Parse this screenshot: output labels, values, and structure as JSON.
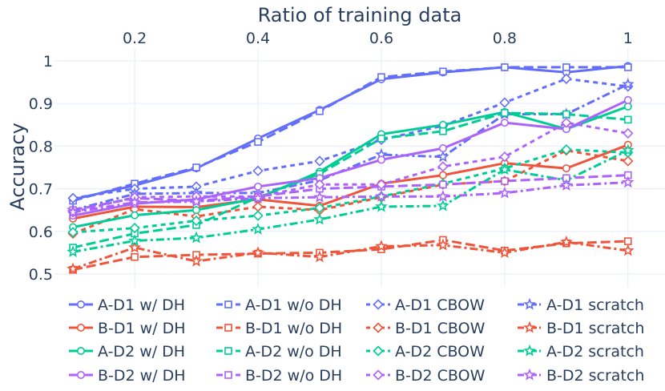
{
  "chart_data": {
    "type": "line",
    "title": "",
    "xlabel": "Ratio of training data",
    "ylabel": "Accuracy",
    "x": [
      0.1,
      0.2,
      0.3,
      0.4,
      0.5,
      0.6,
      0.7,
      0.8,
      0.9,
      1.0
    ],
    "xticks": [
      0.2,
      0.4,
      0.6,
      0.8,
      1
    ],
    "xtick_labels": [
      "0.2",
      "0.4",
      "0.6",
      "0.8",
      "1"
    ],
    "yticks": [
      0.5,
      0.6,
      0.7,
      0.8,
      0.9,
      1
    ],
    "ytick_labels": [
      "0.5",
      "0.6",
      "0.7",
      "0.8",
      "0.9",
      "1"
    ],
    "xlim": [
      0.07,
      1.06
    ],
    "ylim": [
      0.47,
      1.03
    ],
    "grid": true,
    "legend_position": "bottom",
    "colors": {
      "A-D1": "#636efa",
      "B-D1": "#ef553b",
      "A-D2": "#00cc96",
      "B-D2": "#ab63fa"
    },
    "series": [
      {
        "name": "A-D1 w/ DH",
        "color": "#636efa",
        "dash": "solid",
        "marker": "circle",
        "values": [
          0.675,
          0.708,
          0.748,
          0.818,
          0.885,
          0.957,
          0.973,
          0.985,
          0.973,
          0.988
        ]
      },
      {
        "name": "A-D1 w/o DH",
        "color": "#636efa",
        "dash": "dash",
        "marker": "square",
        "values": [
          0.672,
          0.712,
          0.75,
          0.81,
          0.882,
          0.962,
          0.975,
          0.985,
          0.985,
          0.985
        ]
      },
      {
        "name": "A-D1 CBOW",
        "color": "#636efa",
        "dash": "shortdash",
        "marker": "diamond",
        "values": [
          0.678,
          0.7,
          0.705,
          0.742,
          0.765,
          0.815,
          0.848,
          0.902,
          0.958,
          0.94
        ]
      },
      {
        "name": "A-D1 scratch",
        "color": "#636efa",
        "dash": "dashdot",
        "marker": "star",
        "values": [
          0.65,
          0.688,
          0.69,
          0.69,
          0.72,
          0.78,
          0.775,
          0.875,
          0.875,
          0.945
        ]
      },
      {
        "name": "B-D1 w/ DH",
        "color": "#ef553b",
        "dash": "solid",
        "marker": "circle",
        "values": [
          0.63,
          0.658,
          0.657,
          0.675,
          0.66,
          0.712,
          0.732,
          0.76,
          0.748,
          0.803
        ]
      },
      {
        "name": "B-D1 w/o DH",
        "color": "#ef553b",
        "dash": "dash",
        "marker": "square",
        "values": [
          0.51,
          0.54,
          0.545,
          0.548,
          0.55,
          0.558,
          0.58,
          0.555,
          0.572,
          0.577
        ]
      },
      {
        "name": "B-D1 CBOW",
        "color": "#ef553b",
        "dash": "shortdash",
        "marker": "diamond",
        "values": [
          0.595,
          0.652,
          0.635,
          0.658,
          0.65,
          0.68,
          0.71,
          0.718,
          0.79,
          0.765
        ]
      },
      {
        "name": "B-D1 scratch",
        "color": "#ef553b",
        "dash": "dashdot",
        "marker": "star",
        "values": [
          0.512,
          0.562,
          0.53,
          0.55,
          0.54,
          0.565,
          0.568,
          0.55,
          0.575,
          0.555
        ]
      },
      {
        "name": "A-D2 w/ DH",
        "color": "#00cc96",
        "dash": "solid",
        "marker": "circle",
        "values": [
          0.61,
          0.638,
          0.65,
          0.678,
          0.74,
          0.828,
          0.85,
          0.88,
          0.84,
          0.893
        ]
      },
      {
        "name": "A-D2 w/o DH",
        "color": "#00cc96",
        "dash": "dash",
        "marker": "square",
        "values": [
          0.562,
          0.595,
          0.615,
          0.68,
          0.735,
          0.818,
          0.835,
          0.878,
          0.875,
          0.862
        ]
      },
      {
        "name": "A-D2 CBOW",
        "color": "#00cc96",
        "dash": "shortdash",
        "marker": "diamond",
        "values": [
          0.598,
          0.608,
          0.625,
          0.637,
          0.655,
          0.682,
          0.712,
          0.748,
          0.792,
          0.785
        ]
      },
      {
        "name": "A-D2 scratch",
        "color": "#00cc96",
        "dash": "dashdot",
        "marker": "star",
        "values": [
          0.552,
          0.578,
          0.585,
          0.605,
          0.628,
          0.658,
          0.66,
          0.745,
          0.72,
          0.79
        ]
      },
      {
        "name": "B-D2 w/ DH",
        "color": "#ab63fa",
        "dash": "solid",
        "marker": "circle",
        "values": [
          0.637,
          0.665,
          0.675,
          0.705,
          0.725,
          0.768,
          0.795,
          0.855,
          0.84,
          0.908
        ]
      },
      {
        "name": "B-D2 w/o DH",
        "color": "#ab63fa",
        "dash": "dash",
        "marker": "square",
        "values": [
          0.65,
          0.678,
          0.672,
          0.682,
          0.7,
          0.705,
          0.71,
          0.718,
          0.725,
          0.732
        ]
      },
      {
        "name": "B-D2 CBOW",
        "color": "#ab63fa",
        "dash": "shortdash",
        "marker": "diamond",
        "values": [
          0.645,
          0.68,
          0.682,
          0.682,
          0.71,
          0.71,
          0.752,
          0.775,
          0.855,
          0.83
        ]
      },
      {
        "name": "B-D2 scratch",
        "color": "#ab63fa",
        "dash": "dashdot",
        "marker": "star",
        "values": [
          0.645,
          0.668,
          0.67,
          0.678,
          0.68,
          0.682,
          0.682,
          0.69,
          0.708,
          0.715
        ]
      }
    ]
  }
}
